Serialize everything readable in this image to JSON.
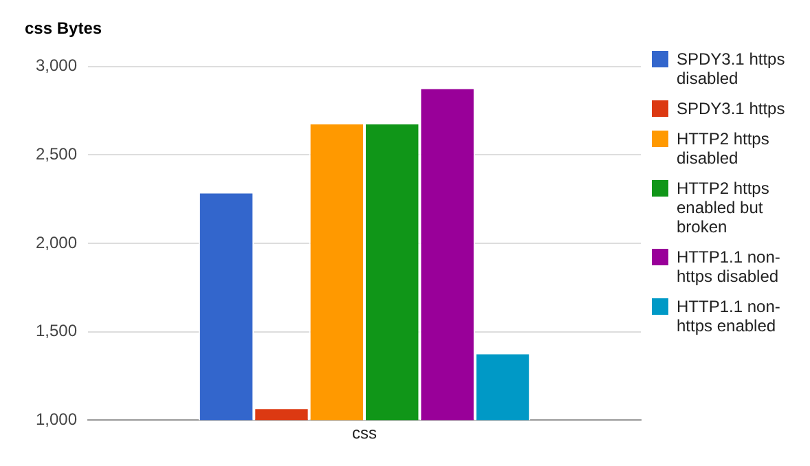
{
  "chart_data": {
    "type": "bar",
    "title": "css Bytes",
    "categories": [
      "css"
    ],
    "series": [
      {
        "name": "SPDY3.1 https disabled",
        "color": "#3366cc",
        "values": [
          2290
        ]
      },
      {
        "name": "SPDY3.1 https",
        "color": "#dc3912",
        "values": [
          1070
        ]
      },
      {
        "name": "HTTP2 https disabled",
        "color": "#ff9900",
        "values": [
          2680
        ]
      },
      {
        "name": "HTTP2 https enabled but broken",
        "color": "#109618",
        "values": [
          2680
        ]
      },
      {
        "name": "HTTP1.1 non-https disabled",
        "color": "#990099",
        "values": [
          2880
        ]
      },
      {
        "name": "HTTP1.1 non-https enabled",
        "color": "#0099c6",
        "values": [
          1380
        ]
      }
    ],
    "ylim": [
      1000,
      3000
    ],
    "yticks": [
      {
        "value": 1000,
        "label": "1,000"
      },
      {
        "value": 1500,
        "label": "1,500"
      },
      {
        "value": 2000,
        "label": "2,000"
      },
      {
        "value": 2500,
        "label": "2,500"
      },
      {
        "value": 3000,
        "label": "3,000"
      }
    ],
    "grid": "y",
    "legend": "right"
  }
}
